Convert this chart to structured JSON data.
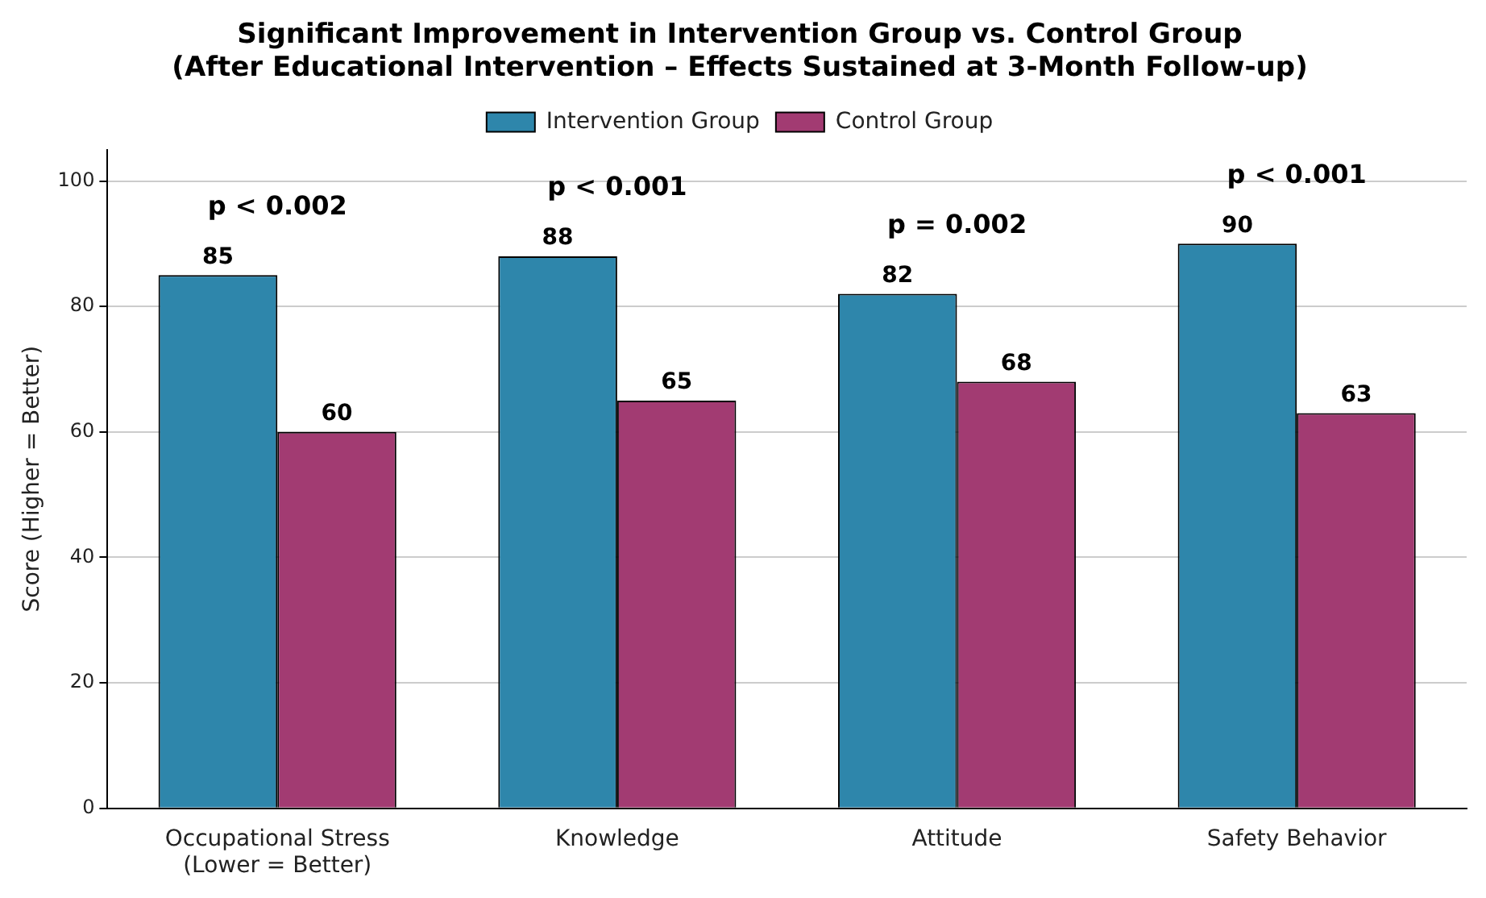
{
  "chart_data": {
    "type": "bar",
    "title": "Significant Improvement in Intervention Group vs. Control Group\n(After Educational Intervention – Effects Sustained at 3-Month Follow-up)",
    "ylabel": "Score (Higher = Better)",
    "categories": [
      "Occupational Stress\n(Lower = Better)",
      "Knowledge",
      "Attitude",
      "Safety Behavior"
    ],
    "series": [
      {
        "name": "Intervention Group",
        "color": "#2e86ab",
        "values": [
          85,
          88,
          82,
          90
        ]
      },
      {
        "name": "Control Group",
        "color": "#a23b72",
        "values": [
          60,
          65,
          68,
          63
        ]
      }
    ],
    "ylim": [
      0,
      105
    ],
    "yticks": [
      0,
      20,
      40,
      60,
      80,
      100
    ],
    "grid": "y",
    "legend": "top",
    "data_labels": true,
    "annotations": [
      "p < 0.002",
      "p < 0.001",
      "p = 0.002",
      "p < 0.001"
    ]
  }
}
